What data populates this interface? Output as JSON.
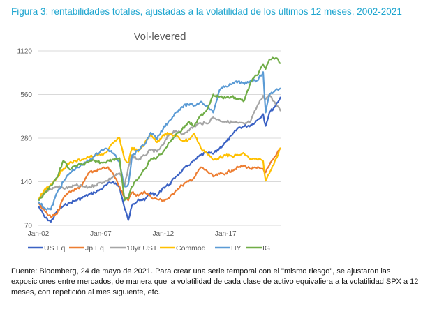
{
  "figure_title": "Figura 3: rentabilidades totales, ajustadas a la volatilidad de los últimos 12 meses, 2002-2021",
  "caption": "Fuente: Bloomberg, 24 de mayo de 2021. Para crear una serie temporal con el \"mismo riesgo\", se ajustaron las exposiciones entre mercados, de manera que la volatilidad de cada clase de activo equivaliera a la volatilidad SPX a 12 meses, con repetición al mes siguiente, etc.",
  "chart_data": {
    "type": "line",
    "title": "Vol-levered",
    "xlabel": "",
    "ylabel": "",
    "yscale": "log2",
    "ylim": [
      70,
      1120
    ],
    "xlim": [
      2002.0,
      2021.4
    ],
    "yticks": [
      {
        "value": 70,
        "label": "70"
      },
      {
        "value": 140,
        "label": "140"
      },
      {
        "value": 280,
        "label": "280"
      },
      {
        "value": 560,
        "label": "560"
      },
      {
        "value": 1120,
        "label": "1120"
      }
    ],
    "xticks": [
      {
        "value": 2002,
        "label": "Jan-02"
      },
      {
        "value": 2007,
        "label": "Jan-07"
      },
      {
        "value": 2012,
        "label": "Jan-12"
      },
      {
        "value": 2017,
        "label": "Jan-17"
      }
    ],
    "grid": "horizontal",
    "legend_position": "bottom",
    "x": [
      2002.0,
      2002.5,
      2003.0,
      2003.5,
      2004.0,
      2004.5,
      2005.0,
      2005.5,
      2006.0,
      2006.5,
      2007.0,
      2007.5,
      2008.0,
      2008.5,
      2008.9,
      2009.2,
      2009.5,
      2010.0,
      2010.5,
      2011.0,
      2011.5,
      2012.0,
      2012.5,
      2013.0,
      2013.5,
      2014.0,
      2014.5,
      2015.0,
      2015.5,
      2016.0,
      2016.5,
      2017.0,
      2017.5,
      2018.0,
      2018.5,
      2019.0,
      2019.5,
      2020.0,
      2020.2,
      2020.5,
      2021.0,
      2021.4
    ],
    "series": [
      {
        "name": "US Eq",
        "color": "#3b62c4",
        "values": [
          95,
          80,
          74,
          88,
          95,
          100,
          104,
          108,
          114,
          118,
          124,
          134,
          140,
          128,
          92,
          76,
          96,
          106,
          104,
          118,
          112,
          128,
          134,
          152,
          166,
          182,
          196,
          214,
          222,
          218,
          238,
          262,
          292,
          330,
          338,
          344,
          370,
          410,
          340,
          420,
          470,
          540
        ]
      },
      {
        "name": "Jp Eq",
        "color": "#ed7d31",
        "values": [
          100,
          88,
          80,
          84,
          108,
          120,
          124,
          132,
          160,
          166,
          170,
          176,
          158,
          130,
          110,
          104,
          118,
          112,
          120,
          110,
          106,
          104,
          108,
          122,
          132,
          140,
          150,
          176,
          166,
          152,
          158,
          160,
          168,
          176,
          180,
          172,
          174,
          172,
          162,
          182,
          210,
          240
        ]
      },
      {
        "name": "10yr UST",
        "color": "#a5a5a5",
        "values": [
          104,
          120,
          124,
          130,
          126,
          128,
          132,
          130,
          128,
          132,
          138,
          142,
          152,
          160,
          130,
          176,
          214,
          198,
          212,
          232,
          226,
          252,
          300,
          316,
          296,
          318,
          338,
          356,
          352,
          390,
          372,
          364,
          360,
          356,
          350,
          366,
          460,
          550,
          520,
          560,
          480,
          430
        ]
      },
      {
        "name": "Commod",
        "color": "#ffc000",
        "values": [
          106,
          124,
          134,
          150,
          172,
          190,
          194,
          200,
          206,
          212,
          214,
          226,
          260,
          280,
          200,
          190,
          240,
          226,
          256,
          300,
          262,
          296,
          300,
          290,
          270,
          272,
          300,
          240,
          220,
          198,
          206,
          212,
          210,
          214,
          218,
          200,
          200,
          194,
          142,
          160,
          200,
          240
        ]
      },
      {
        "name": "HY",
        "color": "#5b9bd5",
        "values": [
          102,
          92,
          90,
          118,
          140,
          160,
          174,
          182,
          196,
          210,
          230,
          236,
          220,
          190,
          130,
          134,
          210,
          232,
          252,
          306,
          276,
          326,
          370,
          420,
          460,
          480,
          470,
          500,
          470,
          420,
          600,
          640,
          660,
          690,
          660,
          700,
          700,
          800,
          420,
          560,
          600,
          620
        ]
      },
      {
        "name": "IG",
        "color": "#70ad47",
        "values": [
          104,
          116,
          132,
          150,
          196,
          170,
          180,
          184,
          190,
          196,
          190,
          194,
          200,
          204,
          104,
          108,
          130,
          148,
          170,
          200,
          206,
          226,
          262,
          296,
          320,
          360,
          340,
          400,
          440,
          560,
          540,
          530,
          540,
          520,
          510,
          680,
          760,
          900,
          840,
          980,
          1000,
          920
        ]
      }
    ]
  }
}
